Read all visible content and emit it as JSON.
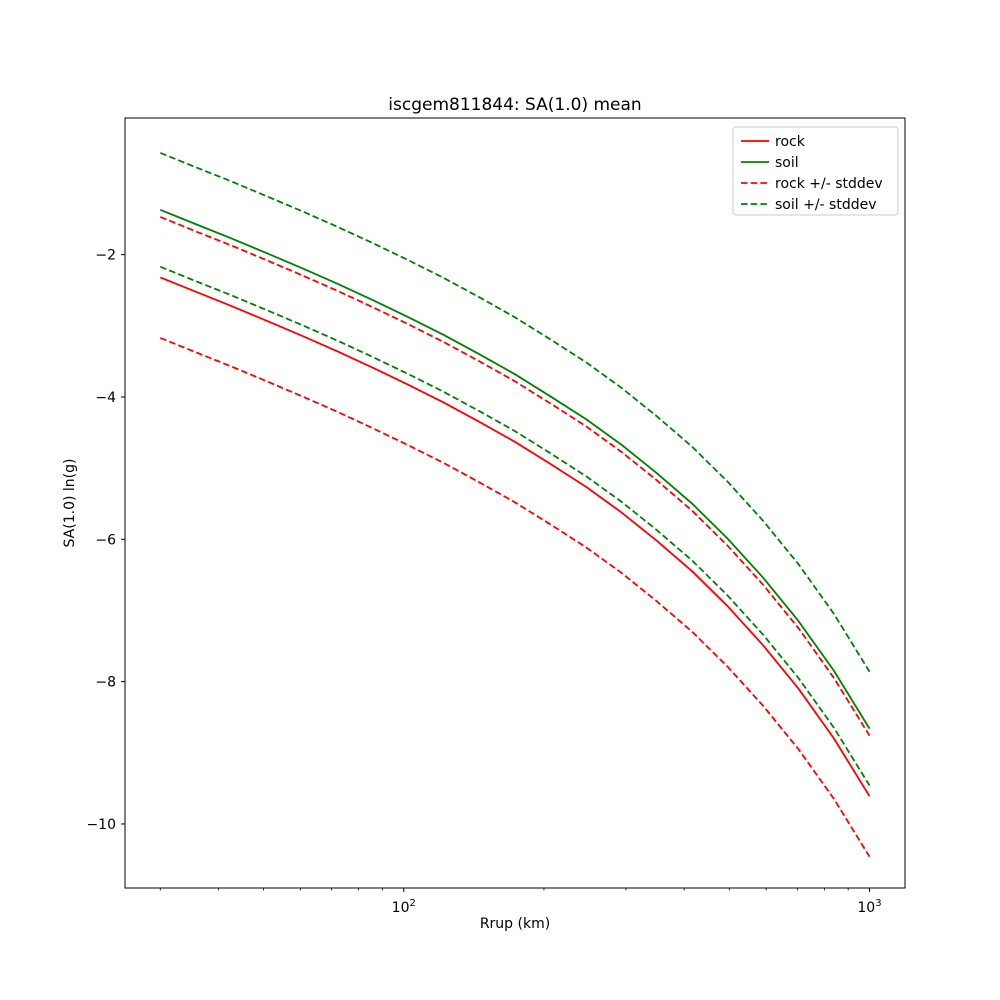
{
  "chart_data": {
    "type": "line",
    "title": "iscgem811844: SA(1.0) mean",
    "xlabel": "Rrup (km)",
    "ylabel": "SA(1.0) ln(g)",
    "x_scale": "log",
    "xlim": [
      25.2,
      1192
    ],
    "ylim": [
      -10.9,
      -0.08
    ],
    "grid": false,
    "y_ticks": [
      -2,
      -4,
      -6,
      -8,
      -10
    ],
    "x_major_ticks": [
      100,
      1000
    ],
    "x_major_tick_labels": [
      {
        "base": "10",
        "exp": "2"
      },
      {
        "base": "10",
        "exp": "3"
      }
    ],
    "x_minor_ticks": [
      30,
      40,
      50,
      60,
      70,
      80,
      90,
      200,
      300,
      400,
      500,
      600,
      700,
      800,
      900
    ],
    "x": [
      30,
      35.7,
      42.6,
      50.8,
      60.5,
      72.1,
      85.9,
      102.4,
      122,
      145.4,
      173.2,
      206.4,
      246,
      293.1,
      349.3,
      416.2,
      495.9,
      590.9,
      704.1,
      839,
      1000
    ],
    "series": [
      {
        "name": "rock",
        "color": "#ff0000",
        "dash": false,
        "values": [
          -2.32,
          -2.52,
          -2.72,
          -2.93,
          -3.14,
          -3.36,
          -3.59,
          -3.83,
          -4.08,
          -4.35,
          -4.63,
          -4.94,
          -5.26,
          -5.62,
          -6.02,
          -6.45,
          -6.94,
          -7.49,
          -8.1,
          -8.8,
          -9.61
        ]
      },
      {
        "name": "soil",
        "color": "#008000",
        "dash": false,
        "values": [
          -1.37,
          -1.57,
          -1.77,
          -1.98,
          -2.19,
          -2.41,
          -2.64,
          -2.88,
          -3.13,
          -3.4,
          -3.68,
          -3.99,
          -4.31,
          -4.67,
          -5.07,
          -5.5,
          -5.99,
          -6.54,
          -7.15,
          -7.85,
          -8.66
        ]
      },
      {
        "name": "rock +/- stddev",
        "color": "#ff0000",
        "dash": true,
        "upper": [
          -1.47,
          -1.67,
          -1.87,
          -2.08,
          -2.29,
          -2.51,
          -2.74,
          -2.98,
          -3.23,
          -3.5,
          -3.78,
          -4.09,
          -4.41,
          -4.77,
          -5.17,
          -5.6,
          -6.09,
          -6.64,
          -7.25,
          -7.95,
          -8.76
        ],
        "lower": [
          -3.17,
          -3.37,
          -3.57,
          -3.78,
          -3.99,
          -4.21,
          -4.44,
          -4.68,
          -4.93,
          -5.2,
          -5.48,
          -5.79,
          -6.11,
          -6.47,
          -6.87,
          -7.3,
          -7.79,
          -8.34,
          -8.95,
          -9.65,
          -10.46
        ]
      },
      {
        "name": "soil +/- stddev",
        "color": "#008000",
        "dash": true,
        "upper": [
          -0.57,
          -0.77,
          -0.97,
          -1.18,
          -1.39,
          -1.61,
          -1.84,
          -2.08,
          -2.33,
          -2.6,
          -2.88,
          -3.19,
          -3.51,
          -3.87,
          -4.27,
          -4.7,
          -5.19,
          -5.74,
          -6.35,
          -7.05,
          -7.86
        ],
        "lower": [
          -2.17,
          -2.37,
          -2.57,
          -2.78,
          -2.99,
          -3.21,
          -3.44,
          -3.68,
          -3.93,
          -4.2,
          -4.48,
          -4.79,
          -5.11,
          -5.47,
          -5.87,
          -6.3,
          -6.79,
          -7.34,
          -7.95,
          -8.65,
          -9.46
        ]
      }
    ],
    "legend": {
      "position": "upper right",
      "entries": [
        "rock",
        "soil",
        "rock +/- stddev",
        "soil +/- stddev"
      ],
      "border_color": "#cccccc",
      "background": "#ffffff"
    },
    "axis_color": "#000000"
  }
}
